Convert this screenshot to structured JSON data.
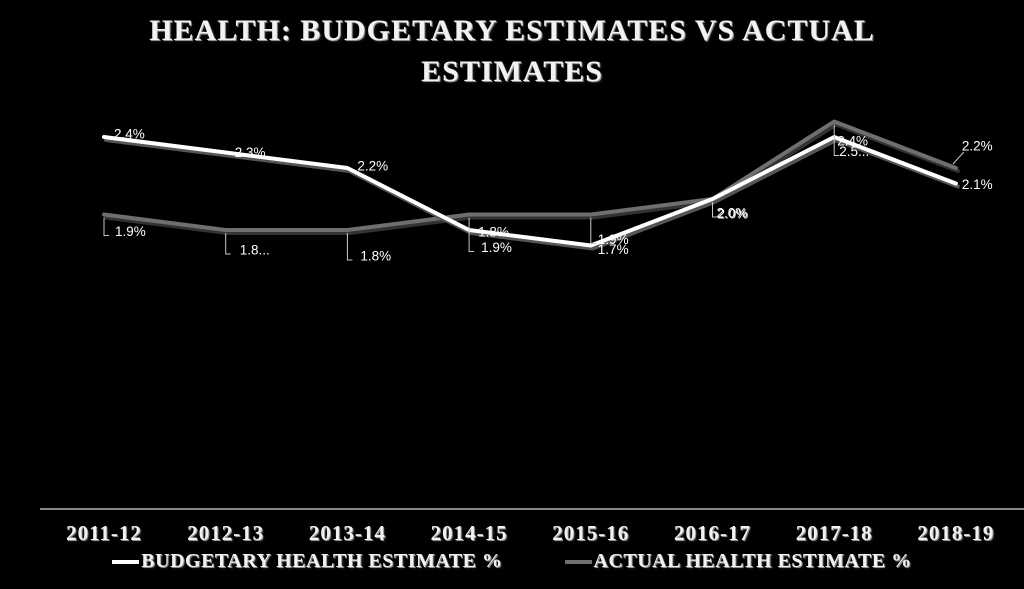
{
  "title": "HEALTH: BUDGETARY ESTIMATES VS ACTUAL ESTIMATES",
  "chart_data": {
    "type": "line",
    "categories": [
      "2011-12",
      "2012-13",
      "2013-14",
      "2014-15",
      "2015-16",
      "2016-17",
      "2017-18",
      "2018-19"
    ],
    "series": [
      {
        "name": "BUDGETARY HEALTH ESTIMATE %",
        "color": "#ffffff",
        "values": [
          2.4,
          2.3,
          2.2,
          1.8,
          1.7,
          2.0,
          2.4,
          2.1
        ],
        "labels": [
          "2.4%",
          "2.3%",
          "2.2%",
          "1.8%",
          "1.7%",
          "2.0%",
          "2.4%",
          "2.1%"
        ]
      },
      {
        "name": "ACTUAL HEALTH ESTIMATE %",
        "color": "#6f6f6f",
        "values": [
          1.9,
          1.8,
          1.8,
          1.9,
          1.9,
          2.0,
          2.5,
          2.2
        ],
        "labels": [
          "1.9%",
          "1.8...",
          "1.8%",
          "1.9%",
          "1.9%",
          "2.0%",
          "2.5...",
          "2.2%"
        ]
      }
    ],
    "xlabel": "",
    "ylabel": "",
    "ylim": [
      0,
      2.6
    ],
    "y_axis_visible": false,
    "grid": false,
    "legend_position": "bottom",
    "background_color": "#000000",
    "axis_line_color": "#d9d9d9",
    "leader_line_color": "#c9c9c9",
    "data_label_color": "#ffffff"
  }
}
